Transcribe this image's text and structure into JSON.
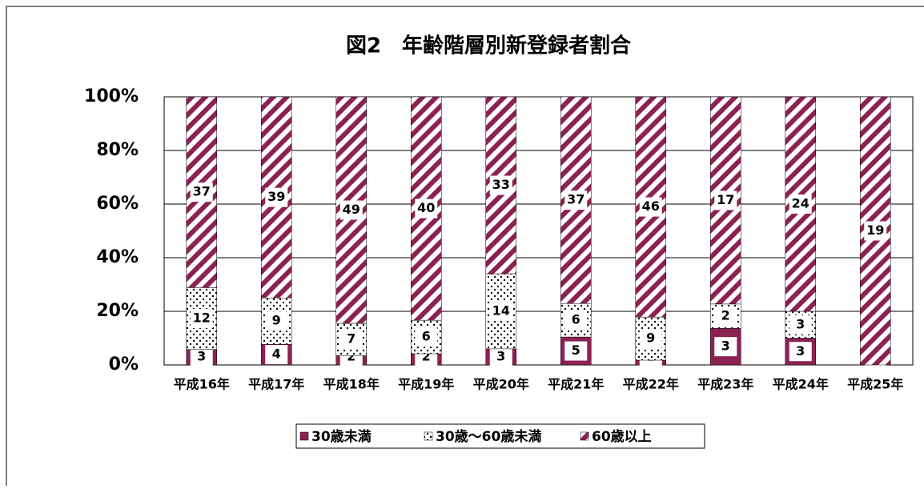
{
  "chart_data": {
    "type": "percent_stacked_bar",
    "title": "図2　年齢階層別新登録者割合",
    "categories": [
      "平成16年",
      "平成17年",
      "平成18年",
      "平成19年",
      "平成20年",
      "平成21年",
      "平成22年",
      "平成23年",
      "平成24年",
      "平成25年"
    ],
    "series": [
      {
        "name": "30歳未満",
        "color": "#8B2252",
        "pattern": "solid",
        "values": [
          3,
          4,
          2,
          2,
          3,
          5,
          1,
          3,
          3,
          0
        ]
      },
      {
        "name": "30歳～60歳未満",
        "color": "#ffffff",
        "pattern": "dots",
        "values": [
          12,
          9,
          7,
          6,
          14,
          6,
          9,
          2,
          3,
          null
        ]
      },
      {
        "name": "60歳以上",
        "color": "#8B2252",
        "pattern": "stripes",
        "values": [
          37,
          39,
          49,
          40,
          33,
          37,
          46,
          17,
          24,
          19
        ]
      }
    ],
    "ylim": [
      0,
      100
    ],
    "yticks": [
      {
        "value": 0,
        "label": "0%"
      },
      {
        "value": 20,
        "label": "20%"
      },
      {
        "value": 40,
        "label": "40%"
      },
      {
        "value": 60,
        "label": "60%"
      },
      {
        "value": 80,
        "label": "80%"
      },
      {
        "value": 100,
        "label": "100%"
      }
    ],
    "grid": true,
    "legend": "bottom"
  }
}
